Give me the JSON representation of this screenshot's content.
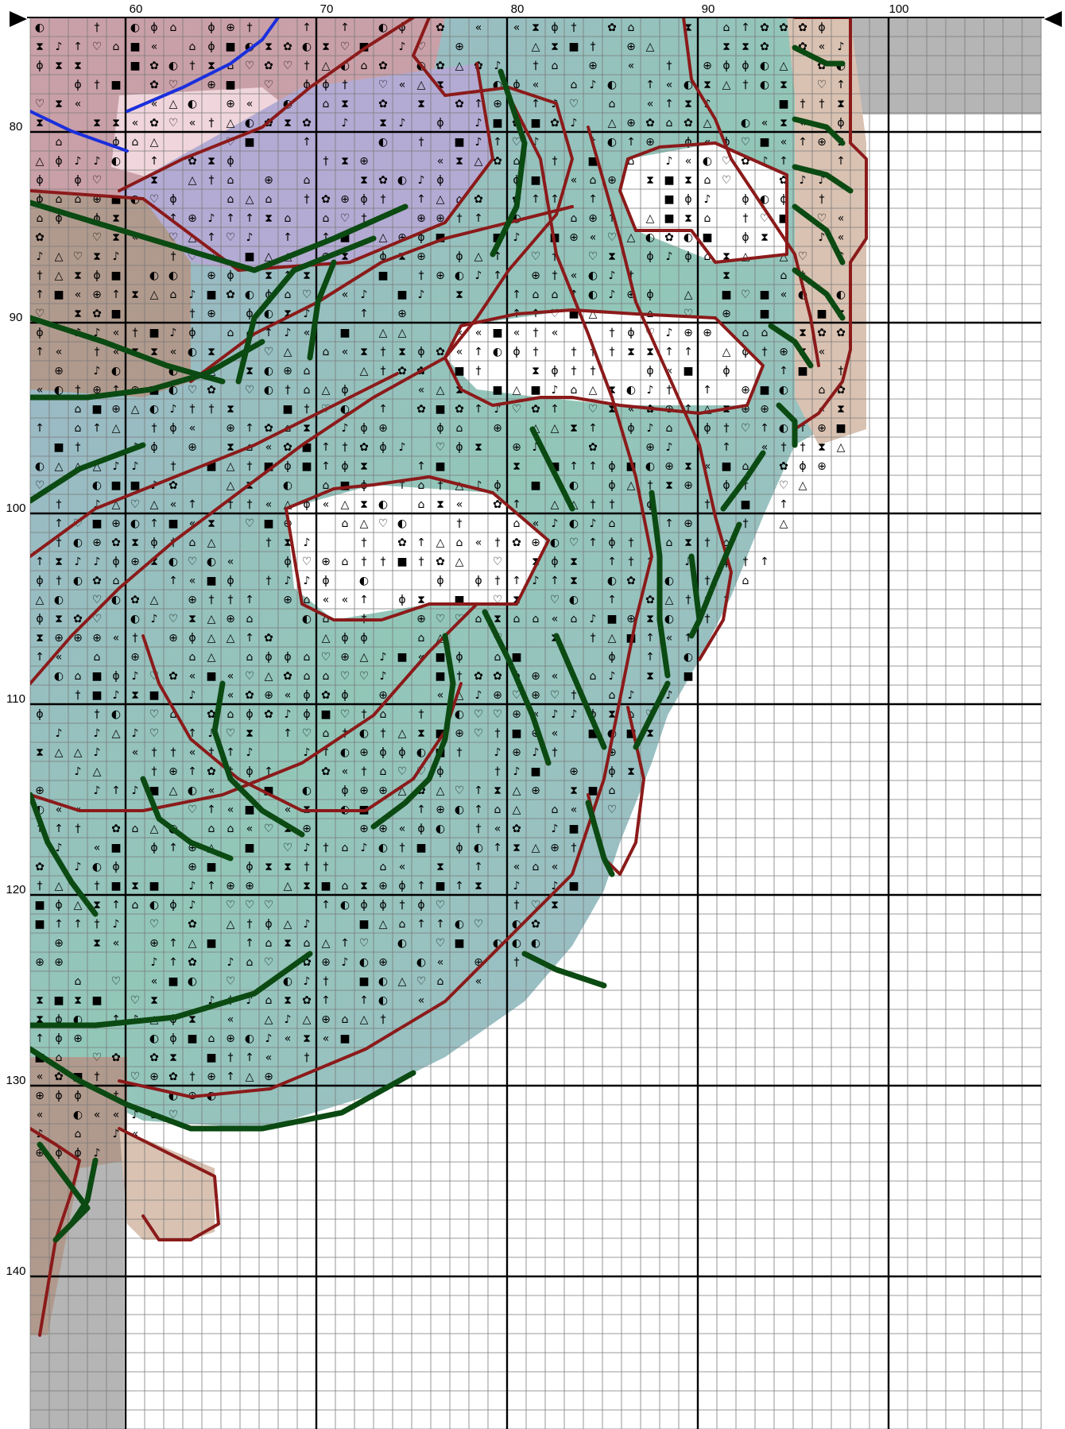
{
  "chart_data": {
    "type": "cross-stitch-pattern",
    "x_axis": {
      "tick_labels": [
        "60",
        "70",
        "80",
        "90",
        "100"
      ],
      "tick_values": [
        60,
        70,
        80,
        90,
        100
      ],
      "range": [
        55,
        108
      ]
    },
    "y_axis": {
      "tick_labels": [
        "80",
        "90",
        "100",
        "110",
        "120",
        "130",
        "140"
      ],
      "tick_values": [
        80,
        90,
        100,
        110,
        120,
        130,
        140
      ],
      "range": [
        74,
        148
      ]
    },
    "grid": true,
    "heavy_gridline_every": 10,
    "center_markers": [
      "top-left",
      "top-right"
    ],
    "colors": {
      "grid_minor": "#7a7a7a",
      "grid_major": "#000000",
      "backstitch_red": "#8b1a1a",
      "backstitch_green": "#0b4a12",
      "backstitch_blue": "#1a2fdc",
      "mauve": "#c9a0a8",
      "rose": "#a98588",
      "lavender": "#b3abd3",
      "slate_blue": "#a6b6d0",
      "steel": "#8a96a5",
      "teal": "#8ec2b6",
      "mint": "#b5dccf",
      "white": "#ffffff",
      "beige": "#d9c2b2",
      "taupe": "#b09a8d",
      "grey_pad": "#b5b5b5"
    }
  }
}
